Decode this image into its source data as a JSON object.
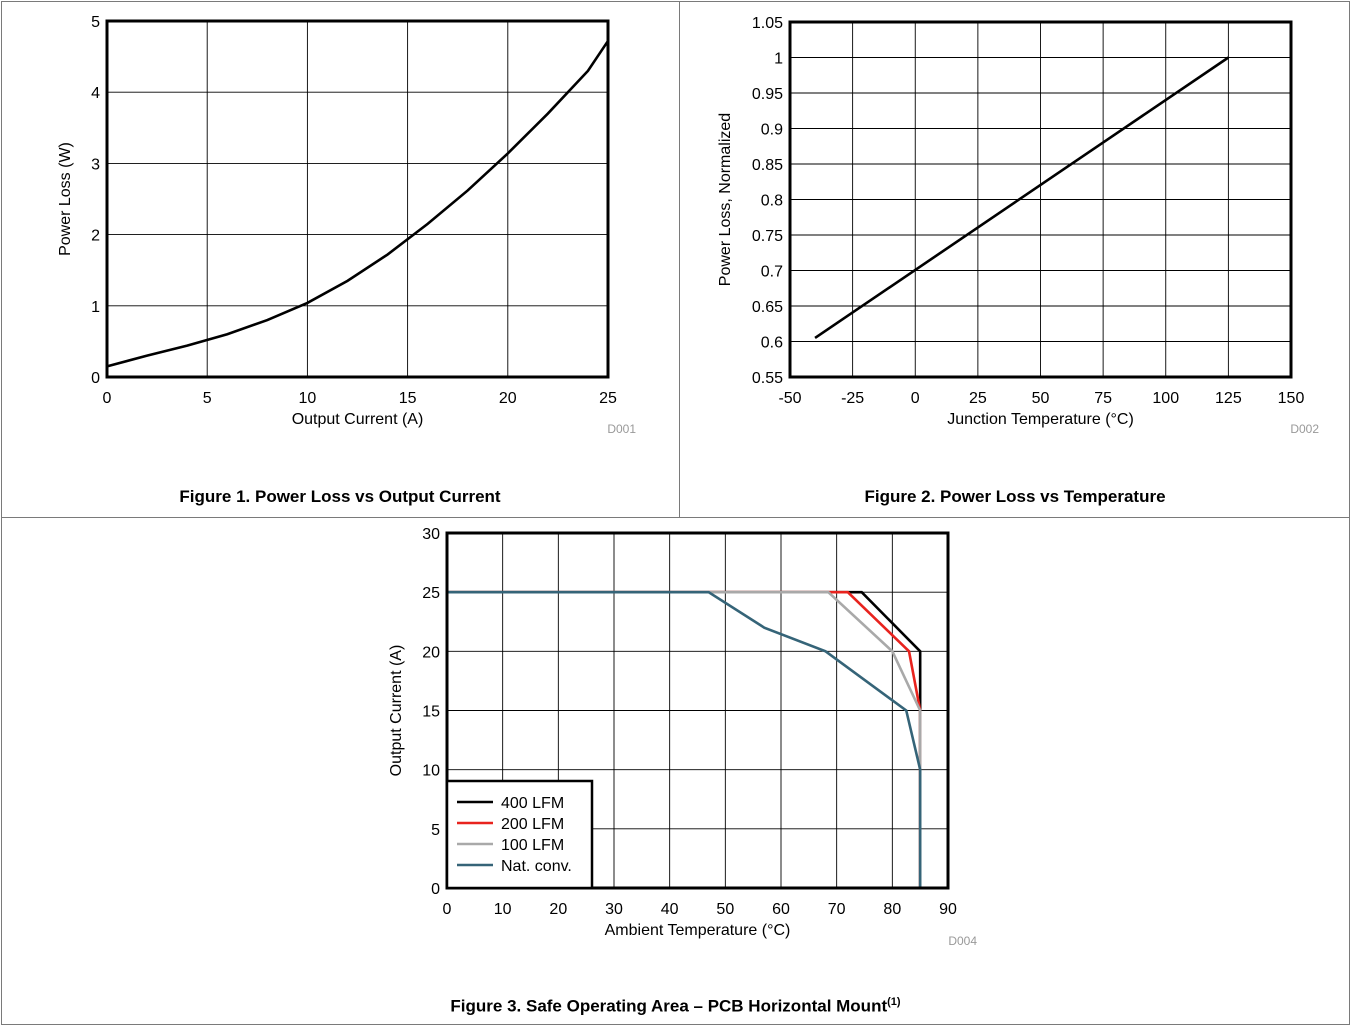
{
  "captions": {
    "fig1": "Figure 1. Power Loss vs Output Current",
    "fig2": "Figure 2. Power Loss vs Temperature",
    "fig3": "Figure 3. Safe Operating Area – PCB Horizontal Mount",
    "fig3_note": "(1)"
  },
  "chart_data": [
    {
      "id": "fig1",
      "type": "line",
      "xlabel": "Output Current (A)",
      "ylabel": "Power Loss (W)",
      "code": "D001",
      "xlim": [
        0,
        25
      ],
      "ylim": [
        0,
        5
      ],
      "xticks": [
        0,
        5,
        10,
        15,
        20,
        25
      ],
      "yticks": [
        0,
        1,
        2,
        3,
        4,
        5
      ],
      "grid": true,
      "series": [
        {
          "color": "#000000",
          "x": [
            0,
            2,
            4,
            6,
            8,
            10,
            12,
            14,
            16,
            18,
            20,
            22,
            24,
            25
          ],
          "y": [
            0.15,
            0.3,
            0.44,
            0.6,
            0.8,
            1.04,
            1.35,
            1.72,
            2.15,
            2.62,
            3.14,
            3.7,
            4.3,
            4.72
          ]
        }
      ]
    },
    {
      "id": "fig2",
      "type": "line",
      "xlabel": "Junction Temperature (°C)",
      "ylabel": "Power Loss, Normalized",
      "code": "D002",
      "xlim": [
        -50,
        150
      ],
      "ylim": [
        0.55,
        1.05
      ],
      "xticks": [
        -50,
        -25,
        0,
        25,
        50,
        75,
        100,
        125,
        150
      ],
      "yticks": [
        0.55,
        0.6,
        0.65,
        0.7,
        0.75,
        0.8,
        0.85,
        0.9,
        0.95,
        1,
        1.05
      ],
      "grid": true,
      "series": [
        {
          "color": "#000000",
          "x": [
            -40,
            125
          ],
          "y": [
            0.605,
            1.0
          ]
        }
      ]
    },
    {
      "id": "fig3",
      "type": "line",
      "xlabel": "Ambient Temperature (°C)",
      "ylabel": "Output Current (A)",
      "code": "D004",
      "xlim": [
        0,
        90
      ],
      "ylim": [
        0,
        30
      ],
      "xticks": [
        0,
        10,
        20,
        30,
        40,
        50,
        60,
        70,
        80,
        90
      ],
      "yticks": [
        0,
        5,
        10,
        15,
        20,
        25,
        30
      ],
      "grid": true,
      "legend": "bottom-left",
      "series": [
        {
          "name": "400 LFM",
          "color": "#000000",
          "x": [
            0,
            74.5,
            85,
            85,
            85
          ],
          "y": [
            25,
            25,
            20,
            15,
            0
          ]
        },
        {
          "name": "200 LFM",
          "color": "#e8231e",
          "x": [
            0,
            72,
            83,
            85,
            85
          ],
          "y": [
            25,
            25,
            20,
            15,
            0
          ]
        },
        {
          "name": "100 LFM",
          "color": "#a9a9a9",
          "x": [
            0,
            68.5,
            80,
            85,
            85
          ],
          "y": [
            25,
            25,
            20,
            15,
            0
          ]
        },
        {
          "name": "Nat. conv.",
          "color": "#356478",
          "x": [
            0,
            47,
            57,
            68,
            82.5,
            85,
            85
          ],
          "y": [
            25,
            25,
            22,
            20,
            15,
            10,
            0
          ]
        }
      ]
    }
  ]
}
